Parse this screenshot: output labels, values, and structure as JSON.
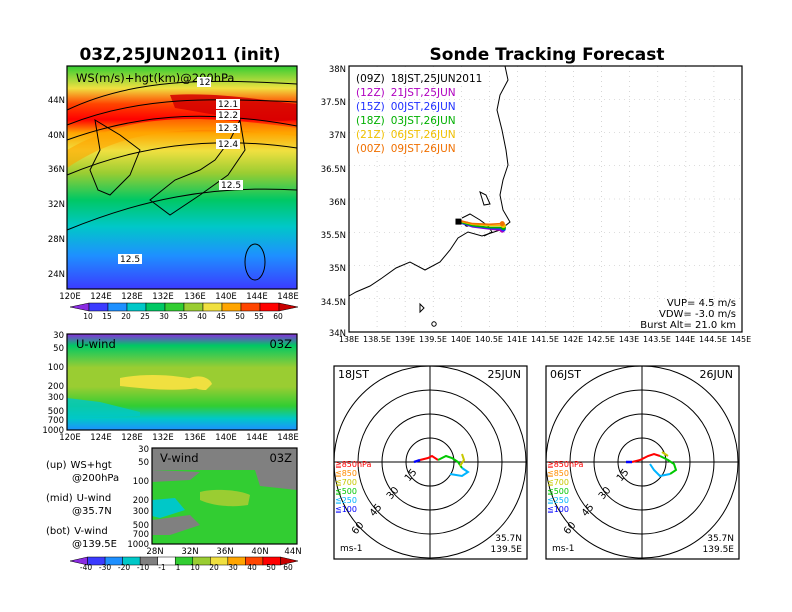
{
  "left_title": "03Z,25JUN2011 (init)",
  "right_title": "Sonde Tracking Forecast",
  "ws_panel": {
    "label": "WS(m/s)+hgt(km)@200hPa",
    "x_ticks": [
      "120E",
      "124E",
      "128E",
      "132E",
      "136E",
      "140E",
      "144E",
      "148E"
    ],
    "y_ticks": [
      "44N",
      "40N",
      "36N",
      "32N",
      "28N",
      "24N"
    ],
    "contour_labels": [
      "12",
      "12.1",
      "12.2",
      "12.3",
      "12.4",
      "12.5",
      "12.5"
    ],
    "colorbar_values": [
      "10",
      "15",
      "20",
      "25",
      "30",
      "35",
      "40",
      "45",
      "50",
      "55",
      "60"
    ],
    "colorbar_colors": [
      "#8a2be2",
      "#3b3bff",
      "#1e90ff",
      "#00c8c8",
      "#00c864",
      "#32cd32",
      "#9acd32",
      "#f0e040",
      "#ffa500",
      "#ff4500",
      "#ff0000",
      "#c80000"
    ]
  },
  "u_panel": {
    "label": "U-wind",
    "time": "03Z",
    "y_ticks": [
      "30",
      "50",
      "100",
      "200",
      "300",
      "500",
      "700",
      "1000"
    ],
    "x_ticks": [
      "120E",
      "124E",
      "128E",
      "132E",
      "136E",
      "140E",
      "144E",
      "148E"
    ]
  },
  "v_panel": {
    "label": "V-wind",
    "time": "03Z",
    "y_ticks": [
      "30",
      "50",
      "100",
      "200",
      "300",
      "500",
      "700",
      "1000"
    ],
    "x_ticks": [
      "28N",
      "32N",
      "36N",
      "40N",
      "44N"
    ],
    "colorbar_values": [
      "-40",
      "-30",
      "-20",
      "-10",
      "-1",
      "1",
      "10",
      "20",
      "30",
      "40",
      "50",
      "60"
    ]
  },
  "legend_notes": [
    {
      "key": "(up)",
      "text": "WS+hgt",
      "sub": "@200hPa"
    },
    {
      "key": "(mid)",
      "text": "U-wind",
      "sub": "@35.7N"
    },
    {
      "key": "(bot)",
      "text": "V-wind",
      "sub": "@139.5E"
    }
  ],
  "track_map": {
    "x_ticks": [
      "138E",
      "138.5E",
      "139E",
      "139.5E",
      "140E",
      "140.5E",
      "141E",
      "141.5E",
      "142E",
      "142.5E",
      "143E",
      "143.5E",
      "144E",
      "144.5E",
      "145E"
    ],
    "y_ticks": [
      "38N",
      "37.5N",
      "37N",
      "36.5N",
      "36N",
      "35.5N",
      "35N",
      "34.5N",
      "34N"
    ],
    "legend": [
      {
        "z": "(09Z)",
        "jst": "18JST,25JUN2011",
        "color": "#000000"
      },
      {
        "z": "(12Z)",
        "jst": "21JST,25JUN",
        "color": "#b000c0"
      },
      {
        "z": "(15Z)",
        "jst": "00JST,26JUN",
        "color": "#2030ff"
      },
      {
        "z": "(18Z)",
        "jst": "03JST,26JUN",
        "color": "#00b000"
      },
      {
        "z": "(21Z)",
        "jst": "06JST,26JUN",
        "color": "#f0c000"
      },
      {
        "z": "(00Z)",
        "jst": "09JST,26JUN",
        "color": "#f07000"
      }
    ],
    "info": [
      "VUP= 4.5 m/s",
      "VDW= -3.0 m/s",
      "Burst Alt= 21.0 km"
    ]
  },
  "hodo_left": {
    "time": "18JST",
    "date": "25JUN",
    "rings": [
      "15",
      "30",
      "45",
      "60"
    ],
    "levels": [
      "≧850hPa",
      "≦850",
      "≦700",
      "≦500",
      "≦250",
      "≦100"
    ],
    "level_colors": [
      "#ff0000",
      "#ff8c00",
      "#c8c800",
      "#00c800",
      "#00b4ff",
      "#0000ff"
    ],
    "lat": "35.7N",
    "lon": "139.5E",
    "unit": "ms-1"
  },
  "hodo_right": {
    "time": "06JST",
    "date": "26JUN",
    "rings": [
      "15",
      "30",
      "45",
      "60"
    ],
    "levels": [
      "≧850hPa",
      "≦850",
      "≦700",
      "≦500",
      "≦250",
      "≦100"
    ],
    "level_colors": [
      "#ff0000",
      "#ff8c00",
      "#c8c800",
      "#00c800",
      "#00b4ff",
      "#0000ff"
    ],
    "lat": "35.7N",
    "lon": "139.5E",
    "unit": "ms-1"
  },
  "chart_data": {
    "type": "line",
    "title": "Sonde Tracking Forecast",
    "xlabel": "",
    "ylabel": "",
    "xlim": [
      138,
      145
    ],
    "ylim": [
      34,
      38
    ],
    "series": [
      {
        "name": "(09Z) 18JST,25JUN2011",
        "x": [
          139.95,
          140.0,
          140.1
        ],
        "y": [
          35.65,
          35.65,
          35.62
        ]
      },
      {
        "name": "(12Z) 21JST,25JUN",
        "x": [
          139.95,
          140.2,
          140.5,
          140.73
        ],
        "y": [
          35.65,
          35.58,
          35.55,
          35.53
        ]
      },
      {
        "name": "(15Z) 00JST,26JUN",
        "x": [
          139.95,
          140.2,
          140.5,
          140.75
        ],
        "y": [
          35.65,
          35.59,
          35.56,
          35.55
        ]
      },
      {
        "name": "(18Z) 03JST,26JUN",
        "x": [
          139.95,
          140.2,
          140.5,
          140.75
        ],
        "y": [
          35.66,
          35.6,
          35.57,
          35.57
        ]
      },
      {
        "name": "(21Z) 06JST,26JUN",
        "x": [
          139.95,
          140.2,
          140.5,
          140.75
        ],
        "y": [
          35.67,
          35.62,
          35.6,
          35.6
        ]
      },
      {
        "name": "(00Z) 09JST,26JUN",
        "x": [
          139.95,
          140.2,
          140.5,
          140.73
        ],
        "y": [
          35.68,
          35.63,
          35.62,
          35.63
        ]
      }
    ]
  }
}
